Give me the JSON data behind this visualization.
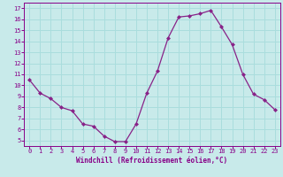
{
  "x": [
    0,
    1,
    2,
    3,
    4,
    5,
    6,
    7,
    8,
    9,
    10,
    11,
    12,
    13,
    14,
    15,
    16,
    17,
    18,
    19,
    20,
    21,
    22,
    23
  ],
  "y": [
    10.5,
    9.3,
    8.8,
    8.0,
    7.7,
    6.5,
    6.3,
    5.4,
    4.9,
    4.9,
    6.5,
    9.3,
    11.3,
    14.3,
    16.2,
    16.3,
    16.5,
    16.8,
    15.3,
    13.7,
    11.0,
    9.2,
    8.7,
    7.8
  ],
  "line_color": "#882288",
  "marker": "D",
  "marker_size": 2.0,
  "bg_color": "#c8eaea",
  "grid_color": "#aadddd",
  "xlabel": "Windchill (Refroidissement éolien,°C)",
  "xlabel_color": "#880088",
  "tick_color": "#880088",
  "spine_color": "#880088",
  "xlim": [
    -0.5,
    23.5
  ],
  "ylim": [
    4.5,
    17.5
  ],
  "yticks": [
    5,
    6,
    7,
    8,
    9,
    10,
    11,
    12,
    13,
    14,
    15,
    16,
    17
  ],
  "xticks": [
    0,
    1,
    2,
    3,
    4,
    5,
    6,
    7,
    8,
    9,
    10,
    11,
    12,
    13,
    14,
    15,
    16,
    17,
    18,
    19,
    20,
    21,
    22,
    23
  ],
  "tick_fontsize": 5.0,
  "xlabel_fontsize": 5.5,
  "xlabel_fontweight": "bold"
}
